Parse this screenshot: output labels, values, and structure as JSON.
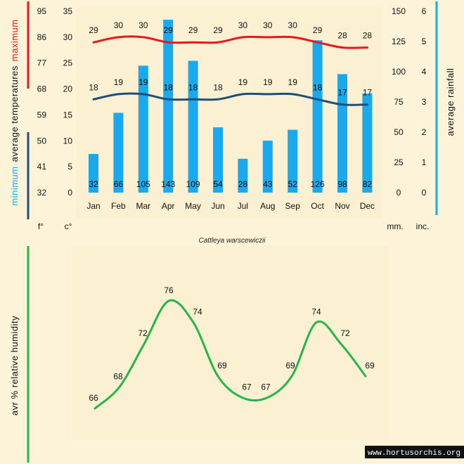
{
  "colors": {
    "background": "#fcf3d8",
    "max_line": "#e8181b",
    "min_line": "#1f4e79",
    "bars": "#19a9ec",
    "humidity_line": "#27b44a",
    "rain_axis": "#19a9ec"
  },
  "chart_data": [
    {
      "type": "bar",
      "title": "",
      "caption": "Cattleya warscewiczii",
      "categories": [
        "Jan",
        "Feb",
        "Mar",
        "Apr",
        "May",
        "Jun",
        "Jul",
        "Aug",
        "Sep",
        "Oct",
        "Nov",
        "Dec"
      ],
      "series": [
        {
          "name": "maximum",
          "type": "line",
          "axis": "celsius",
          "values": [
            29,
            30,
            30,
            29,
            29,
            29,
            30,
            30,
            30,
            29,
            28,
            28
          ]
        },
        {
          "name": "minimum",
          "type": "line",
          "axis": "celsius",
          "values": [
            18,
            19,
            19,
            18,
            18,
            18,
            19,
            19,
            19,
            18,
            17,
            17
          ]
        },
        {
          "type": "bar",
          "axis": "mm",
          "values": [
            32,
            66,
            105,
            143,
            109,
            54,
            28,
            43,
            52,
            126,
            98,
            82
          ]
        }
      ],
      "axes": {
        "fahrenheit": {
          "unit": "f°",
          "ticks": [
            "95",
            "86",
            "77",
            "68",
            "59",
            "50",
            "41",
            "32"
          ]
        },
        "celsius": {
          "unit": "c°",
          "ticks": [
            "35",
            "30",
            "25",
            "20",
            "15",
            "10",
            "5",
            "0"
          ],
          "ylim": [
            0,
            35
          ]
        },
        "mm": {
          "unit": "mm.",
          "ticks": [
            "150",
            "125",
            "100",
            "75",
            "50",
            "25",
            "0"
          ],
          "ylim": [
            0,
            150
          ]
        },
        "inches": {
          "unit": "inc.",
          "ticks": [
            "6",
            "5",
            "4",
            "3",
            "2",
            "1",
            "0"
          ]
        }
      },
      "left_title": {
        "maximum": "maximum",
        "average": "average  temperatures",
        "minimum": "minimum"
      },
      "right_title": "average rainfall",
      "grid": false
    },
    {
      "type": "line",
      "title": "",
      "ylabel": "avr % relative humidity",
      "series": [
        {
          "values": [
            66,
            68,
            72,
            76,
            74,
            69,
            67,
            67,
            69,
            74,
            72,
            69
          ]
        }
      ],
      "grid": false
    }
  ],
  "watermark": "www.hortusorchis.org"
}
